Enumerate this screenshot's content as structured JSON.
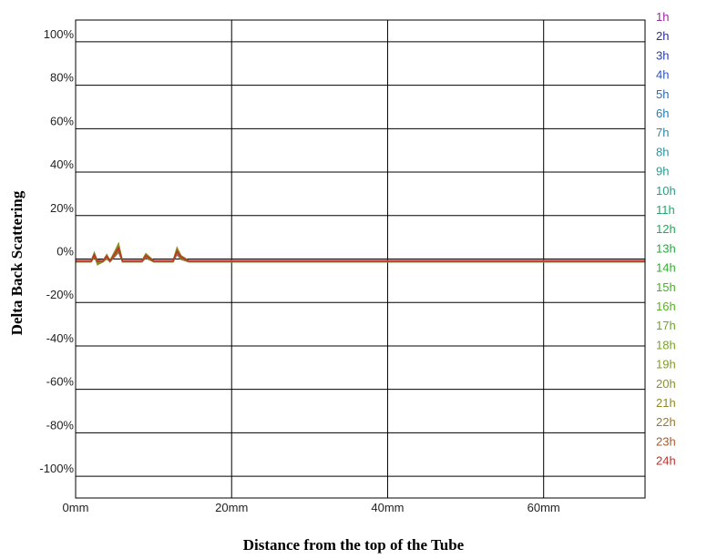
{
  "chart_data": {
    "type": "line",
    "title": "",
    "xlabel": "Distance from the top of the Tube",
    "ylabel": "Delta Back Scattering",
    "x_unit": "mm",
    "xlim": [
      0,
      73
    ],
    "ylim": [
      -110,
      110
    ],
    "grid": true,
    "legend_position": "right",
    "x_ticks": [
      {
        "value": 0,
        "label": "0mm"
      },
      {
        "value": 20,
        "label": "20mm"
      },
      {
        "value": 40,
        "label": "40mm"
      },
      {
        "value": 60,
        "label": "60mm"
      }
    ],
    "y_ticks": [
      {
        "value": 100,
        "label": "100%"
      },
      {
        "value": 80,
        "label": "80%"
      },
      {
        "value": 60,
        "label": "60%"
      },
      {
        "value": 40,
        "label": "40%"
      },
      {
        "value": 20,
        "label": "20%"
      },
      {
        "value": 0,
        "label": "0%"
      },
      {
        "value": -20,
        "label": "-20%"
      },
      {
        "value": -40,
        "label": "-40%"
      },
      {
        "value": -60,
        "label": "-60%"
      },
      {
        "value": -80,
        "label": "-80%"
      },
      {
        "value": -100,
        "label": "-100%"
      }
    ],
    "series": [
      {
        "name": "1h",
        "color": "#9a2aa0"
      },
      {
        "name": "2h",
        "color": "#2a2aa8"
      },
      {
        "name": "3h",
        "color": "#2a40b0"
      },
      {
        "name": "4h",
        "color": "#2a55b8"
      },
      {
        "name": "5h",
        "color": "#2a6ab8"
      },
      {
        "name": "6h",
        "color": "#2a7ab0"
      },
      {
        "name": "7h",
        "color": "#2a88a8"
      },
      {
        "name": "8h",
        "color": "#2a94a0"
      },
      {
        "name": "9h",
        "color": "#2a9a94"
      },
      {
        "name": "10h",
        "color": "#22a080"
      },
      {
        "name": "11h",
        "color": "#22a66a"
      },
      {
        "name": "12h",
        "color": "#22aa55"
      },
      {
        "name": "13h",
        "color": "#22ac40"
      },
      {
        "name": "14h",
        "color": "#30b030"
      },
      {
        "name": "15h",
        "color": "#44b028"
      },
      {
        "name": "16h",
        "color": "#58b024"
      },
      {
        "name": "17h",
        "color": "#6aa822"
      },
      {
        "name": "18h",
        "color": "#78a222"
      },
      {
        "name": "19h",
        "color": "#859a22"
      },
      {
        "name": "20h",
        "color": "#8c9224"
      },
      {
        "name": "21h",
        "color": "#928826"
      },
      {
        "name": "22h",
        "color": "#987a28"
      },
      {
        "name": "23h",
        "color": "#a85a2a"
      },
      {
        "name": "24h",
        "color": "#c0302a"
      }
    ],
    "profile": {
      "x": [
        0,
        2,
        2.4,
        2.8,
        3.5,
        4.0,
        4.4,
        5.0,
        5.5,
        6.0,
        7.0,
        8.5,
        9.0,
        10.0,
        12.5,
        13.0,
        13.5,
        14.5,
        20,
        30,
        40,
        50,
        60,
        73
      ],
      "y": [
        0,
        0,
        2.5,
        -2,
        0,
        1.5,
        0,
        3,
        7,
        0,
        0,
        0,
        2,
        0,
        0,
        5,
        1,
        0,
        0,
        0,
        0,
        0,
        0,
        0
      ]
    }
  }
}
